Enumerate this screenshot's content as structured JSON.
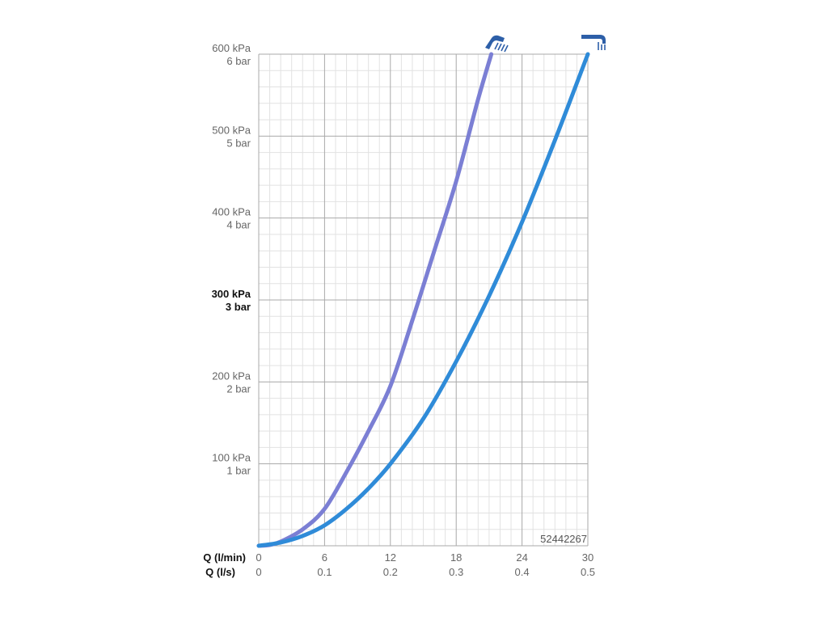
{
  "chart_data": {
    "type": "line",
    "xlabel_primary": "Q (l/min)",
    "xlabel_secondary": "Q (l/s)",
    "x_ticks_primary": [
      "0",
      "6",
      "12",
      "18",
      "24",
      "30"
    ],
    "x_ticks_secondary": [
      "0",
      "0.1",
      "0.2",
      "0.3",
      "0.4",
      "0.5"
    ],
    "xlim": [
      0,
      30
    ],
    "ylim": [
      0,
      600
    ],
    "y_unit": "kPa",
    "y_ticks": [
      {
        "value": 100,
        "kpa": "100 kPa",
        "bar": "1 bar",
        "bold": false
      },
      {
        "value": 200,
        "kpa": "200 kPa",
        "bar": "2 bar",
        "bold": false
      },
      {
        "value": 300,
        "kpa": "300 kPa",
        "bar": "3 bar",
        "bold": true
      },
      {
        "value": 400,
        "kpa": "400 kPa",
        "bar": "4 bar",
        "bold": false
      },
      {
        "value": 500,
        "kpa": "500 kPa",
        "bar": "5 bar",
        "bold": false
      },
      {
        "value": 600,
        "kpa": "600 kPa",
        "bar": "6 bar",
        "bold": false
      }
    ],
    "grid": true,
    "series": [
      {
        "icon": "shower-head-icon",
        "color": "#7b7fd4",
        "x": [
          0,
          1,
          2,
          4,
          6,
          8,
          10,
          12,
          14,
          16,
          18,
          20,
          21.2
        ],
        "y": [
          0,
          1,
          5,
          20,
          45,
          90,
          140,
          195,
          275,
          360,
          445,
          545,
          600
        ]
      },
      {
        "icon": "bath-spout-icon",
        "color": "#2f8bd8",
        "x": [
          0,
          2,
          4,
          6,
          8,
          10,
          12,
          15,
          18,
          21,
          24,
          27,
          30
        ],
        "y": [
          0,
          4,
          12,
          25,
          45,
          70,
          100,
          155,
          225,
          305,
          395,
          495,
          600
        ]
      }
    ],
    "annotation": "52442267"
  }
}
